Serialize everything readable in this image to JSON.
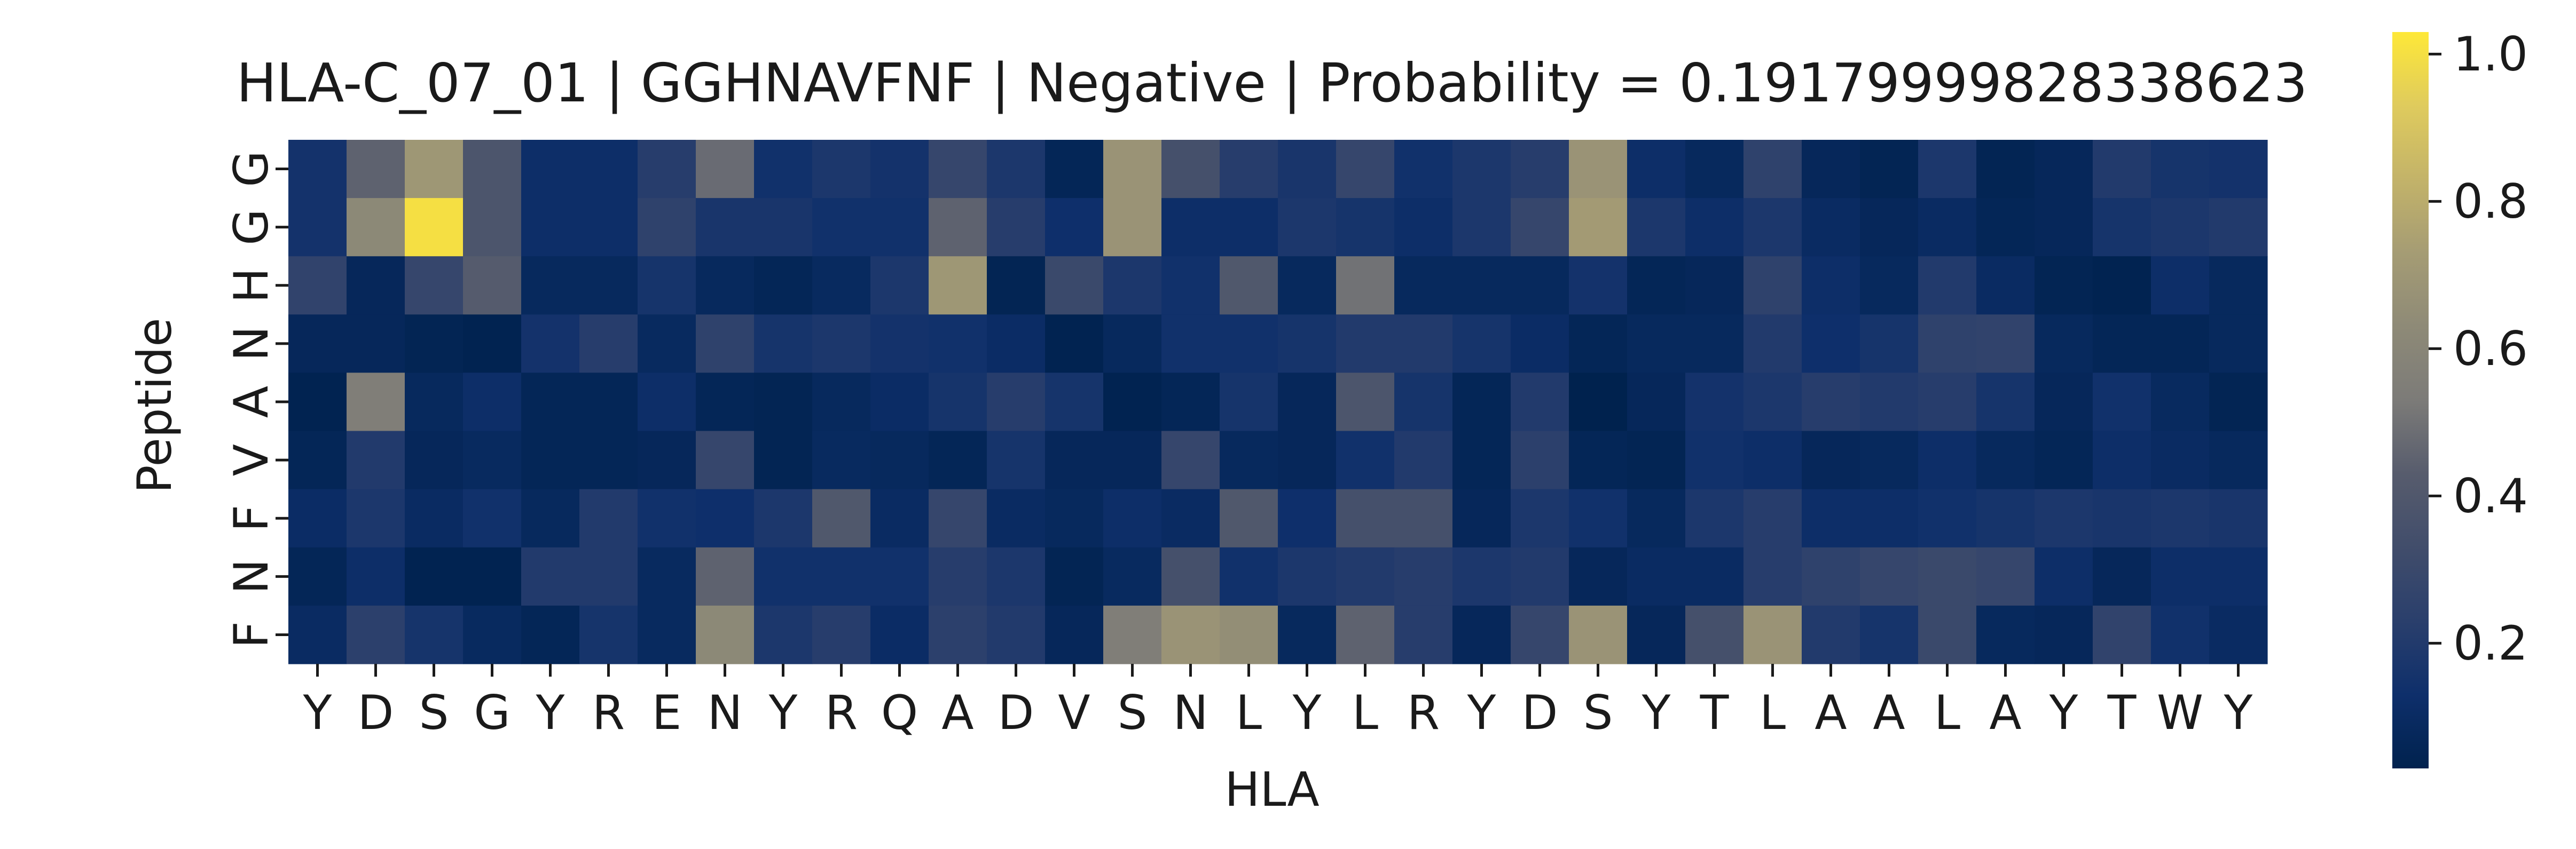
{
  "chart_data": {
    "type": "heatmap",
    "title": "HLA-C_07_01 | GGHNAVFNF | Negative | Probability = 0.19179999828338623",
    "xlabel": "HLA",
    "ylabel": "Peptide",
    "x_categories": [
      "Y",
      "D",
      "S",
      "G",
      "Y",
      "R",
      "E",
      "N",
      "Y",
      "R",
      "Q",
      "A",
      "D",
      "V",
      "S",
      "N",
      "L",
      "Y",
      "L",
      "R",
      "Y",
      "D",
      "S",
      "Y",
      "T",
      "L",
      "A",
      "A",
      "L",
      "A",
      "Y",
      "T",
      "W",
      "Y"
    ],
    "y_categories": [
      "G",
      "G",
      "H",
      "N",
      "A",
      "V",
      "F",
      "N",
      "F"
    ],
    "colormap": "cividis",
    "vmin": 0.03,
    "vmax": 1.03,
    "colorbar_ticks": [
      0.2,
      0.4,
      0.6,
      0.8,
      1.0
    ],
    "colorbar_tick_labels": [
      "0.2",
      "0.4",
      "0.6",
      "0.8",
      "1.0"
    ],
    "values": [
      [
        0.15,
        0.45,
        0.7,
        0.38,
        0.12,
        0.12,
        0.22,
        0.48,
        0.14,
        0.18,
        0.15,
        0.28,
        0.18,
        0.06,
        0.68,
        0.35,
        0.22,
        0.17,
        0.28,
        0.14,
        0.18,
        0.22,
        0.68,
        0.12,
        0.08,
        0.25,
        0.07,
        0.05,
        0.18,
        0.05,
        0.07,
        0.2,
        0.16,
        0.15
      ],
      [
        0.15,
        0.62,
        1.0,
        0.38,
        0.12,
        0.12,
        0.25,
        0.17,
        0.17,
        0.14,
        0.14,
        0.45,
        0.22,
        0.13,
        0.68,
        0.12,
        0.12,
        0.18,
        0.16,
        0.12,
        0.18,
        0.28,
        0.72,
        0.18,
        0.12,
        0.18,
        0.1,
        0.07,
        0.1,
        0.06,
        0.07,
        0.16,
        0.18,
        0.2
      ],
      [
        0.26,
        0.07,
        0.28,
        0.42,
        0.08,
        0.08,
        0.16,
        0.08,
        0.06,
        0.09,
        0.18,
        0.7,
        0.05,
        0.3,
        0.18,
        0.14,
        0.4,
        0.08,
        0.5,
        0.08,
        0.08,
        0.08,
        0.15,
        0.06,
        0.07,
        0.25,
        0.12,
        0.08,
        0.2,
        0.1,
        0.05,
        0.04,
        0.12,
        0.08
      ],
      [
        0.07,
        0.07,
        0.05,
        0.04,
        0.15,
        0.22,
        0.09,
        0.25,
        0.16,
        0.18,
        0.15,
        0.14,
        0.11,
        0.04,
        0.08,
        0.14,
        0.14,
        0.16,
        0.2,
        0.2,
        0.16,
        0.11,
        0.06,
        0.08,
        0.08,
        0.2,
        0.13,
        0.16,
        0.25,
        0.26,
        0.08,
        0.06,
        0.06,
        0.08
      ],
      [
        0.04,
        0.55,
        0.08,
        0.12,
        0.06,
        0.06,
        0.12,
        0.06,
        0.05,
        0.08,
        0.11,
        0.16,
        0.22,
        0.16,
        0.04,
        0.06,
        0.16,
        0.07,
        0.38,
        0.16,
        0.06,
        0.2,
        0.03,
        0.07,
        0.15,
        0.18,
        0.22,
        0.2,
        0.22,
        0.16,
        0.07,
        0.14,
        0.09,
        0.05
      ],
      [
        0.06,
        0.2,
        0.07,
        0.09,
        0.06,
        0.06,
        0.07,
        0.28,
        0.05,
        0.09,
        0.08,
        0.06,
        0.16,
        0.07,
        0.07,
        0.28,
        0.08,
        0.07,
        0.14,
        0.2,
        0.06,
        0.24,
        0.06,
        0.05,
        0.14,
        0.12,
        0.07,
        0.08,
        0.12,
        0.08,
        0.06,
        0.12,
        0.1,
        0.08
      ],
      [
        0.11,
        0.18,
        0.1,
        0.14,
        0.08,
        0.2,
        0.14,
        0.13,
        0.18,
        0.4,
        0.1,
        0.28,
        0.1,
        0.08,
        0.12,
        0.1,
        0.4,
        0.13,
        0.35,
        0.35,
        0.07,
        0.18,
        0.14,
        0.08,
        0.18,
        0.22,
        0.12,
        0.12,
        0.14,
        0.16,
        0.18,
        0.17,
        0.18,
        0.17
      ],
      [
        0.06,
        0.12,
        0.04,
        0.04,
        0.2,
        0.2,
        0.09,
        0.45,
        0.14,
        0.14,
        0.14,
        0.22,
        0.18,
        0.05,
        0.09,
        0.35,
        0.14,
        0.18,
        0.2,
        0.22,
        0.18,
        0.2,
        0.07,
        0.1,
        0.1,
        0.22,
        0.25,
        0.28,
        0.3,
        0.28,
        0.12,
        0.07,
        0.12,
        0.12
      ],
      [
        0.1,
        0.24,
        0.16,
        0.09,
        0.06,
        0.16,
        0.09,
        0.62,
        0.18,
        0.22,
        0.11,
        0.24,
        0.2,
        0.07,
        0.55,
        0.68,
        0.65,
        0.08,
        0.45,
        0.22,
        0.07,
        0.28,
        0.68,
        0.07,
        0.35,
        0.68,
        0.2,
        0.16,
        0.3,
        0.08,
        0.07,
        0.26,
        0.14,
        0.1
      ]
    ]
  }
}
